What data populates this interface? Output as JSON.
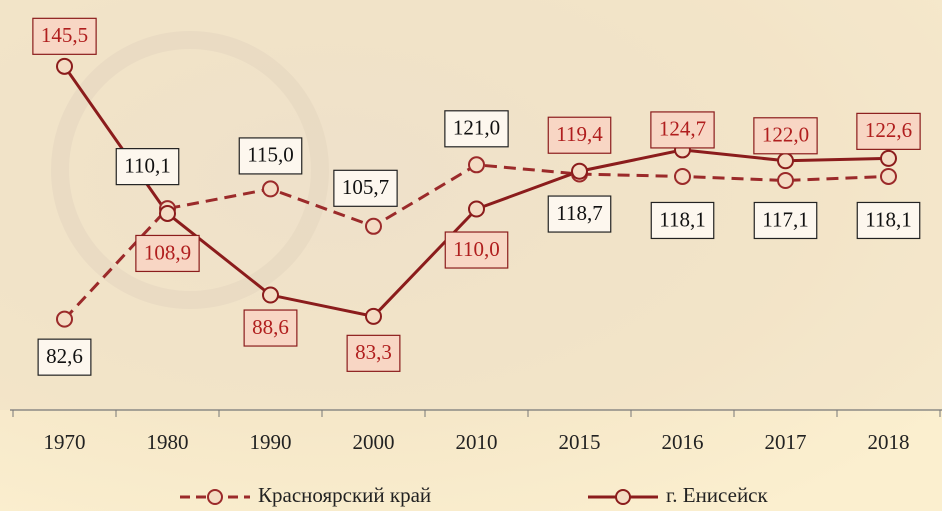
{
  "chart_data": {
    "type": "line",
    "categories": [
      "1970",
      "1980",
      "1990",
      "2000",
      "2010",
      "2015",
      "2016",
      "2017",
      "2018"
    ],
    "ylim": [
      60,
      162
    ],
    "series": [
      {
        "name": "Красноярский край",
        "color": "#9b2a2a",
        "dashed": true,
        "values": [
          82.6,
          110.1,
          115.0,
          105.7,
          121.0,
          118.7,
          118.1,
          117.1,
          118.1
        ],
        "value_labels": [
          "82,6",
          "110,1",
          "115,0",
          "105,7",
          "121,0",
          "118,7",
          "118,1",
          "117,1",
          "118,1"
        ]
      },
      {
        "name": "г. Енисейск",
        "color": "#8b1c1c",
        "dashed": false,
        "values": [
          145.5,
          108.9,
          88.6,
          83.3,
          110.0,
          119.4,
          124.7,
          122.0,
          122.6
        ],
        "value_labels": [
          "145,5",
          "108,9",
          "88,6",
          "83,3",
          "110,0",
          "119,4",
          "124,7",
          "122,0",
          "122,6"
        ]
      }
    ]
  }
}
